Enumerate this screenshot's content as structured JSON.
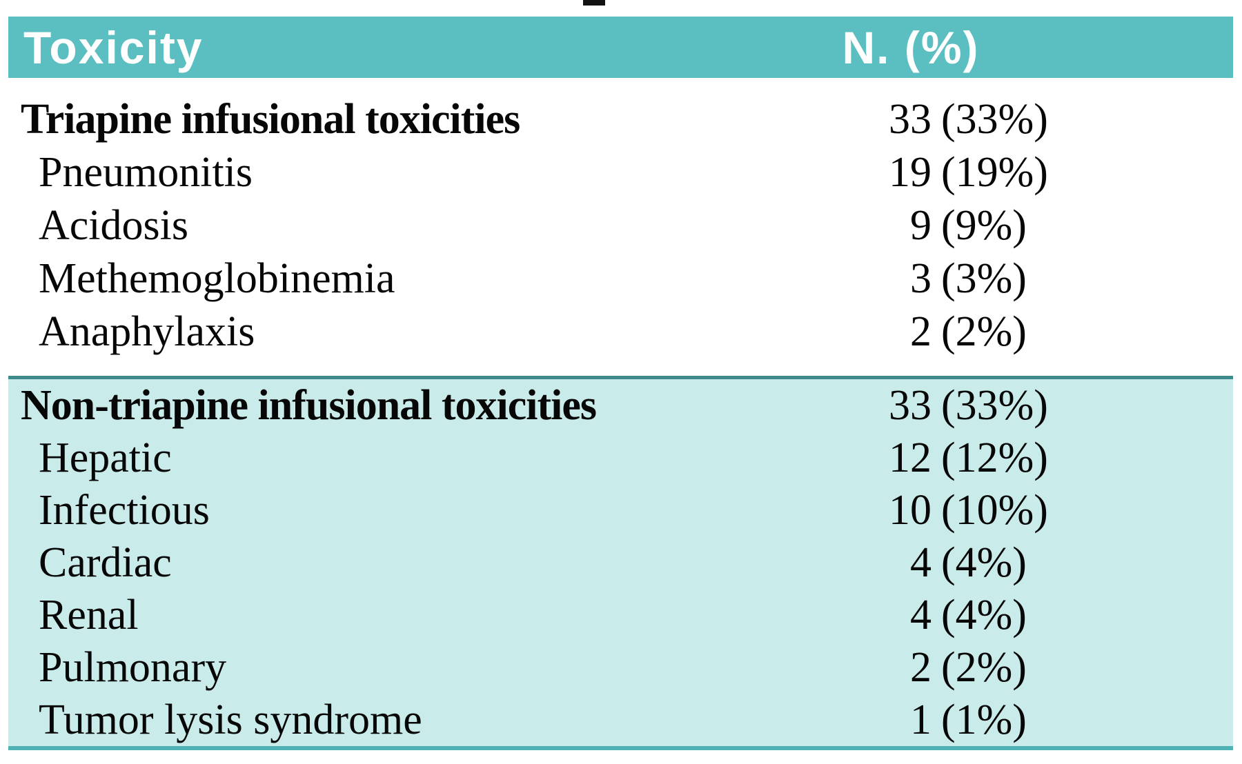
{
  "colors": {
    "header_bg": "#5bbfc1",
    "section_bg": "#c9ebe9",
    "section_top_rule": "#3f8a8c",
    "bottom_rule": "#4fb3b5",
    "header_text": "#ffffff",
    "body_text": "#070707"
  },
  "header": {
    "col_toxicity": "Toxicity",
    "col_n": "N. (%)"
  },
  "rows": [
    {
      "label": "Triapine infusional toxicities",
      "n": "33",
      "pct": "(33%)"
    },
    {
      "label": "Pneumonitis",
      "n": "19",
      "pct": "(19%)"
    },
    {
      "label": "Acidosis",
      "n": "9",
      "pct": "(9%)"
    },
    {
      "label": "Methemoglobinemia",
      "n": "3",
      "pct": "(3%)"
    },
    {
      "label": "Anaphylaxis",
      "n": "2",
      "pct": "(2%)"
    },
    {
      "label": "Non-triapine infusional toxicities",
      "n": "33",
      "pct": "(33%)"
    },
    {
      "label": "Hepatic",
      "n": "12",
      "pct": "(12%)"
    },
    {
      "label": "Infectious",
      "n": "10",
      "pct": "(10%)"
    },
    {
      "label": "Cardiac",
      "n": "4",
      "pct": "(4%)"
    },
    {
      "label": "Renal",
      "n": "4",
      "pct": "(4%)"
    },
    {
      "label": "Pulmonary",
      "n": "2",
      "pct": "(2%)"
    },
    {
      "label": "Tumor lysis syndrome",
      "n": "1",
      "pct": "(1%)"
    }
  ],
  "chart_data": {
    "type": "table",
    "columns": [
      "Toxicity",
      "N. (%)"
    ],
    "rows": [
      [
        "Triapine infusional toxicities",
        "33 (33%)"
      ],
      [
        "Pneumonitis",
        "19 (19%)"
      ],
      [
        "Acidosis",
        "9 (9%)"
      ],
      [
        "Methemoglobinemia",
        "3 (3%)"
      ],
      [
        "Anaphylaxis",
        "2 (2%)"
      ],
      [
        "Non-triapine infusional toxicities",
        "33 (33%)"
      ],
      [
        "Hepatic",
        "12 (12%)"
      ],
      [
        "Infectious",
        "10 (10%)"
      ],
      [
        "Cardiac",
        "4 (4%)"
      ],
      [
        "Renal",
        "4 (4%)"
      ],
      [
        "Pulmonary",
        "2 (2%)"
      ],
      [
        "Tumor lysis syndrome",
        "1 (1%)"
      ]
    ]
  }
}
